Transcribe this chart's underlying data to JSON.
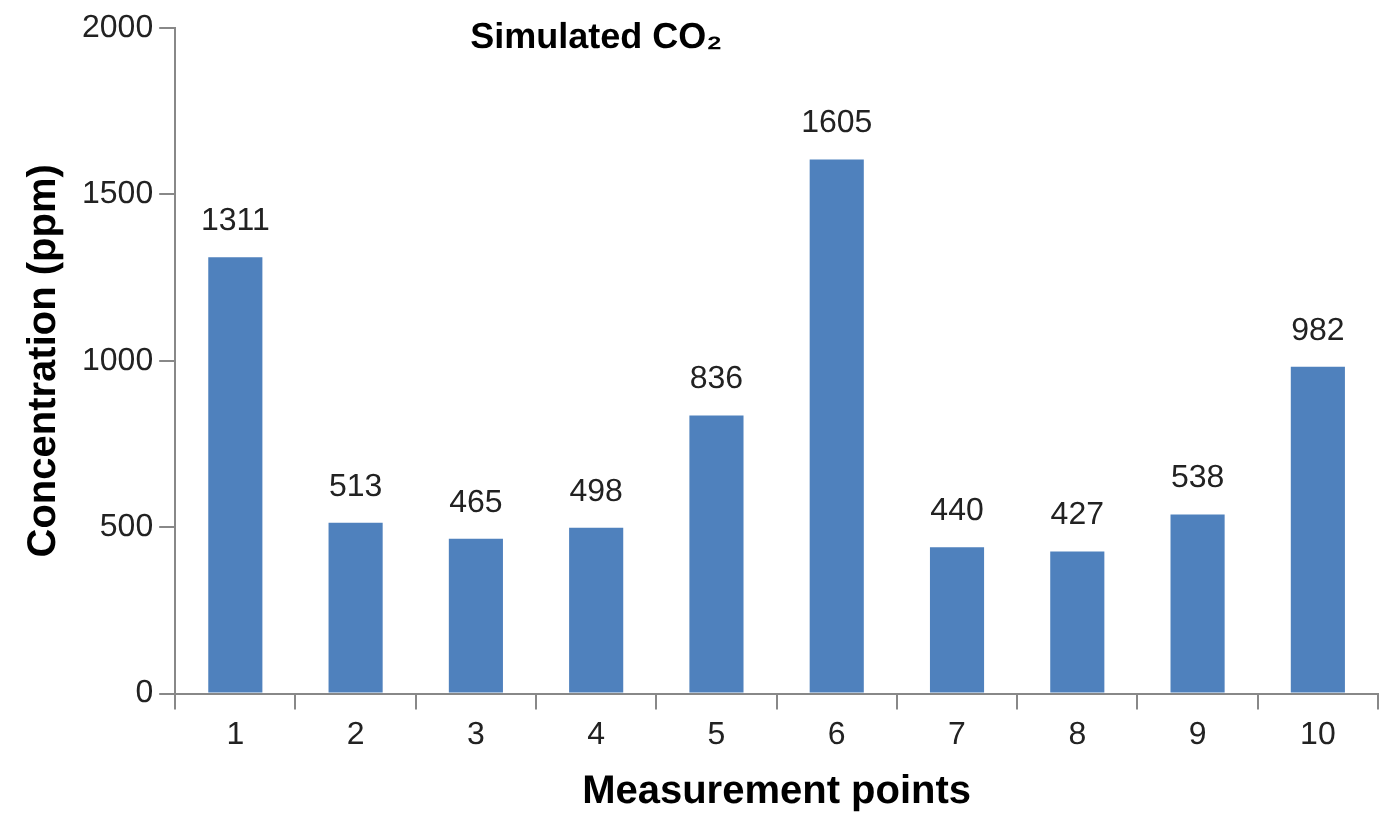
{
  "chart_data": {
    "type": "bar",
    "title": "Simulated CO₂",
    "xlabel": "Measurement points",
    "ylabel": "Concentration (ppm)",
    "categories": [
      "1",
      "2",
      "3",
      "4",
      "5",
      "6",
      "7",
      "8",
      "9",
      "10"
    ],
    "values": [
      1311,
      513,
      465,
      498,
      836,
      1605,
      440,
      427,
      538,
      982
    ],
    "color": "#4f81bd",
    "ylim": [
      0,
      2000
    ],
    "yticks": [
      0,
      500,
      1000,
      1500,
      2000
    ],
    "grid": false,
    "legend": false,
    "data_labels": true
  }
}
